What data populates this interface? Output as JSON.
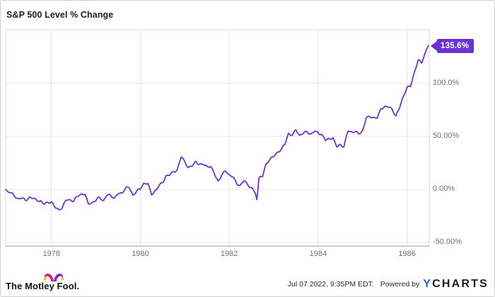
{
  "ui": {
    "title": "S&P 500 Level % Change",
    "badge_label": "135.6%"
  },
  "footer": {
    "brand_text": "The Motley Fool.",
    "brand_icon": "jester-cap-icon",
    "timestamp": "Jul 07 2022, 9:35PM EDT.",
    "powered_by": "Powered by",
    "ycharts_y": "Y",
    "ycharts_rest": "CHARTS",
    "ycharts_y_color": "#1b6be0",
    "jester_pink": "#e8157d",
    "jester_purple": "#7a2bd1",
    "jester_yellow": "#ffb911"
  },
  "chart_data": {
    "type": "line",
    "title": "S&P 500 Level % Change",
    "xlabel": "",
    "ylabel": "",
    "grid": true,
    "legend": "none",
    "xlim": [
      1976.97,
      1986.5
    ],
    "ylim": [
      -53.3,
      150.7
    ],
    "x_ticks": [
      {
        "value": 1978,
        "label": "1978"
      },
      {
        "value": 1980,
        "label": "1980"
      },
      {
        "value": 1982,
        "label": "1982"
      },
      {
        "value": 1984,
        "label": "1984"
      },
      {
        "value": 1986,
        "label": "1986"
      }
    ],
    "y_ticks": [
      {
        "value": 100,
        "label": "100.0%"
      },
      {
        "value": 50,
        "label": "50.00%"
      },
      {
        "value": 0,
        "label": "0.00%"
      },
      {
        "value": -50,
        "label": "-50.00%"
      }
    ],
    "end_label": "135.6%",
    "colors": {
      "line": "#6b35d2",
      "badge": "#6b33d4",
      "grid": "#e6e6e6",
      "plot_border": "#d8d8d8",
      "axis": "#9e9e9e",
      "tick_text": "#6f6f6f"
    },
    "series": [
      {
        "name": "S&P 500 Level % Change",
        "points": [
          [
            1976.97,
            0.0
          ],
          [
            1977.08,
            -3.0
          ],
          [
            1977.17,
            -6.5
          ],
          [
            1977.25,
            -8.5
          ],
          [
            1977.33,
            -8.0
          ],
          [
            1977.42,
            -10.5
          ],
          [
            1977.5,
            -7.0
          ],
          [
            1977.58,
            -8.5
          ],
          [
            1977.67,
            -10.0
          ],
          [
            1977.75,
            -10.5
          ],
          [
            1977.83,
            -14.0
          ],
          [
            1977.92,
            -12.0
          ],
          [
            1978.0,
            -11.5
          ],
          [
            1978.08,
            -17.0
          ],
          [
            1978.17,
            -19.0
          ],
          [
            1978.25,
            -16.5
          ],
          [
            1978.33,
            -10.0
          ],
          [
            1978.42,
            -9.5
          ],
          [
            1978.5,
            -11.0
          ],
          [
            1978.58,
            -6.5
          ],
          [
            1978.67,
            -4.0
          ],
          [
            1978.75,
            -4.5
          ],
          [
            1978.83,
            -13.5
          ],
          [
            1978.92,
            -12.0
          ],
          [
            1979.0,
            -10.5
          ],
          [
            1979.08,
            -7.0
          ],
          [
            1979.17,
            -10.5
          ],
          [
            1979.25,
            -5.5
          ],
          [
            1979.33,
            -5.3
          ],
          [
            1979.42,
            -8.0
          ],
          [
            1979.5,
            -4.2
          ],
          [
            1979.58,
            -3.4
          ],
          [
            1979.67,
            1.7
          ],
          [
            1979.75,
            1.7
          ],
          [
            1979.83,
            -5.2
          ],
          [
            1979.92,
            -1.2
          ],
          [
            1980.0,
            0.4
          ],
          [
            1980.08,
            6.2
          ],
          [
            1980.17,
            5.8
          ],
          [
            1980.25,
            -5.0
          ],
          [
            1980.33,
            -1.1
          ],
          [
            1980.42,
            3.5
          ],
          [
            1980.5,
            6.3
          ],
          [
            1980.58,
            13.2
          ],
          [
            1980.67,
            13.9
          ],
          [
            1980.75,
            16.8
          ],
          [
            1980.83,
            18.6
          ],
          [
            1980.92,
            30.8
          ],
          [
            1981.0,
            26.3
          ],
          [
            1981.08,
            20.6
          ],
          [
            1981.17,
            22.2
          ],
          [
            1981.25,
            26.6
          ],
          [
            1981.33,
            23.6
          ],
          [
            1981.42,
            23.4
          ],
          [
            1981.5,
            22.1
          ],
          [
            1981.58,
            21.8
          ],
          [
            1981.67,
            14.3
          ],
          [
            1981.75,
            8.1
          ],
          [
            1981.83,
            13.4
          ],
          [
            1981.92,
            17.6
          ],
          [
            1982.0,
            14.0
          ],
          [
            1982.08,
            12.0
          ],
          [
            1982.17,
            5.3
          ],
          [
            1982.25,
            4.2
          ],
          [
            1982.33,
            8.4
          ],
          [
            1982.42,
            4.1
          ],
          [
            1982.5,
            2.0
          ],
          [
            1982.58,
            -3.0
          ],
          [
            1982.62,
            -9.5
          ],
          [
            1982.67,
            11.2
          ],
          [
            1982.75,
            12.1
          ],
          [
            1982.83,
            24.4
          ],
          [
            1982.92,
            28.9
          ],
          [
            1983.0,
            30.9
          ],
          [
            1983.08,
            35.2
          ],
          [
            1983.17,
            37.8
          ],
          [
            1983.25,
            42.3
          ],
          [
            1983.33,
            53.0
          ],
          [
            1983.42,
            51.1
          ],
          [
            1983.5,
            56.4
          ],
          [
            1983.58,
            51.3
          ],
          [
            1983.67,
            53.0
          ],
          [
            1983.75,
            54.5
          ],
          [
            1983.83,
            52.2
          ],
          [
            1983.92,
            54.8
          ],
          [
            1984.0,
            53.5
          ],
          [
            1984.08,
            52.1
          ],
          [
            1984.17,
            46.2
          ],
          [
            1984.25,
            48.1
          ],
          [
            1984.33,
            48.9
          ],
          [
            1984.42,
            40.1
          ],
          [
            1984.5,
            42.5
          ],
          [
            1984.58,
            40.2
          ],
          [
            1984.67,
            55.1
          ],
          [
            1984.75,
            54.6
          ],
          [
            1984.83,
            54.6
          ],
          [
            1984.92,
            52.2
          ],
          [
            1985.0,
            55.6
          ],
          [
            1985.08,
            67.2
          ],
          [
            1985.17,
            68.6
          ],
          [
            1985.25,
            68.1
          ],
          [
            1985.33,
            67.3
          ],
          [
            1985.42,
            76.4
          ],
          [
            1985.5,
            78.5
          ],
          [
            1985.58,
            77.7
          ],
          [
            1985.67,
            75.5
          ],
          [
            1985.75,
            69.4
          ],
          [
            1985.83,
            76.6
          ],
          [
            1985.92,
            88.1
          ],
          [
            1986.0,
            96.6
          ],
          [
            1986.08,
            97.1
          ],
          [
            1986.17,
            111.2
          ],
          [
            1986.25,
            122.3
          ],
          [
            1986.33,
            119.2
          ],
          [
            1986.42,
            130.2
          ],
          [
            1986.48,
            135.6
          ]
        ]
      }
    ]
  }
}
